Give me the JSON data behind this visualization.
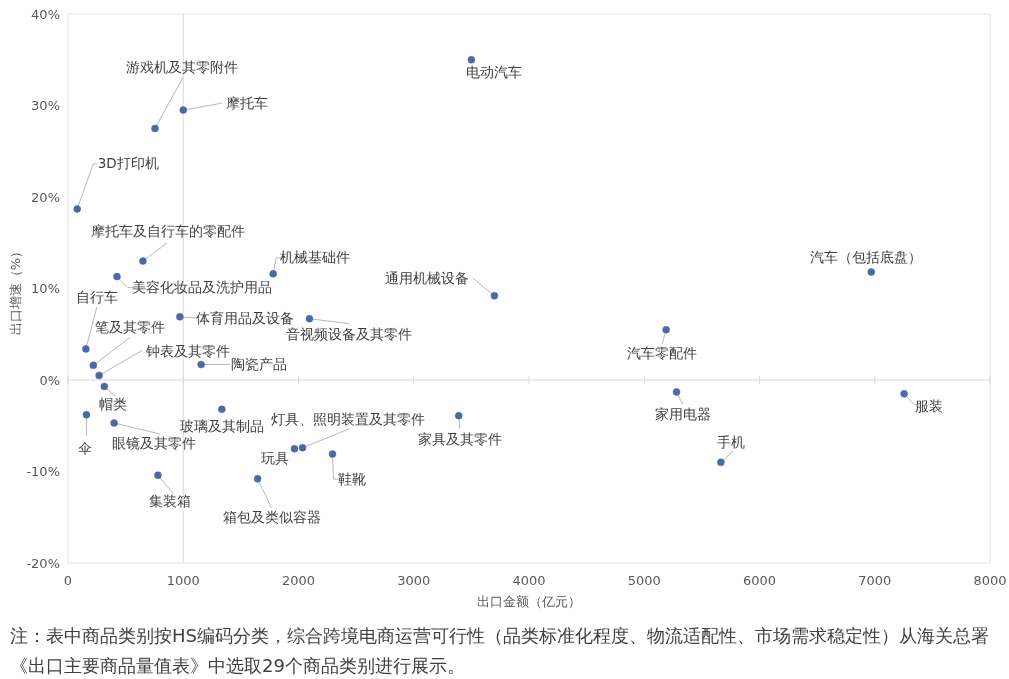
{
  "chart_data": {
    "type": "scatter",
    "xlabel": "出口金额（亿元）",
    "ylabel": "出口增速（%）",
    "x": [
      3500,
      755,
      1000,
      80,
      650,
      425,
      1780,
      3700,
      6970,
      155,
      220,
      270,
      315,
      160,
      400,
      780,
      970,
      1155,
      1335,
      2095,
      1965,
      2035,
      1645,
      2295,
      3390,
      5190,
      5280,
      5665,
      7255
    ],
    "values": [
      35.0,
      27.5,
      29.5,
      18.7,
      13.0,
      11.3,
      11.6,
      9.2,
      11.8,
      3.4,
      1.6,
      0.5,
      -0.7,
      -3.8,
      -4.7,
      -10.4,
      6.9,
      1.7,
      -3.2,
      6.7,
      -7.5,
      -7.4,
      -10.8,
      -8.1,
      -3.9,
      5.5,
      -1.3,
      -9.0,
      -1.5
    ],
    "color": "#4a6aa5",
    "marker": "circle",
    "xlim": [
      0,
      8000
    ],
    "ylim": [
      -20,
      40
    ],
    "xticks": [
      0,
      1000,
      2000,
      3000,
      4000,
      5000,
      6000,
      7000,
      8000
    ],
    "yticks": [
      {
        "value": -20,
        "label": "-20%"
      },
      {
        "value": -10,
        "label": "-10%"
      },
      {
        "value": 0,
        "label": "0%"
      },
      {
        "value": 10,
        "label": "10%"
      },
      {
        "value": 20,
        "label": "20%"
      },
      {
        "value": 30,
        "label": "30%"
      },
      {
        "value": 40,
        "label": "40%"
      }
    ],
    "ref_lines": [
      {
        "axis": "y",
        "value": 0,
        "color": "#d9d9d9"
      },
      {
        "axis": "x",
        "value": 1000,
        "color": "#d9d9d9"
      }
    ],
    "annotations": [
      {
        "text": "电动汽车",
        "x": 3500,
        "y": 35.0
      },
      {
        "text": "游戏机及其零附件",
        "x": 755,
        "y": 27.5
      },
      {
        "text": "摩托车",
        "x": 1000,
        "y": 29.5
      },
      {
        "text": "3D打印机",
        "x": 80,
        "y": 18.7
      },
      {
        "text": "摩托车及自行车的零配件",
        "x": 650,
        "y": 13.0
      },
      {
        "text": "美容化妆品及洗护用品",
        "x": 425,
        "y": 11.3
      },
      {
        "text": "机械基础件",
        "x": 1780,
        "y": 11.6
      },
      {
        "text": "通用机械设备",
        "x": 3700,
        "y": 9.2
      },
      {
        "text": "汽车（包括底盘）",
        "x": 6970,
        "y": 11.8
      },
      {
        "text": "自行车",
        "x": 155,
        "y": 3.4
      },
      {
        "text": "笔及其零件",
        "x": 220,
        "y": 1.6
      },
      {
        "text": "钟表及其零件",
        "x": 270,
        "y": 0.5
      },
      {
        "text": "帽类",
        "x": 315,
        "y": -0.7
      },
      {
        "text": "伞",
        "x": 160,
        "y": -3.8
      },
      {
        "text": "眼镜及其零件",
        "x": 400,
        "y": -4.7
      },
      {
        "text": "集装箱",
        "x": 780,
        "y": -10.4
      },
      {
        "text": "体育用品及设备",
        "x": 970,
        "y": 6.9
      },
      {
        "text": "陶瓷产品",
        "x": 1155,
        "y": 1.7
      },
      {
        "text": "玻璃及其制品",
        "x": 1335,
        "y": -3.2
      },
      {
        "text": "音视频设备及其零件",
        "x": 2095,
        "y": 6.7
      },
      {
        "text": "玩具",
        "x": 1965,
        "y": -7.5
      },
      {
        "text": "灯具、照明装置及其零件",
        "x": 2035,
        "y": -7.4
      },
      {
        "text": "箱包及类似容器",
        "x": 1645,
        "y": -10.8
      },
      {
        "text": "鞋靴",
        "x": 2295,
        "y": -8.1
      },
      {
        "text": "家具及其零件",
        "x": 3390,
        "y": -3.9
      },
      {
        "text": "汽车零配件",
        "x": 5190,
        "y": 5.5
      },
      {
        "text": "家用电器",
        "x": 5280,
        "y": -1.3
      },
      {
        "text": "手机",
        "x": 5665,
        "y": -9.0
      },
      {
        "text": "服装",
        "x": 7255,
        "y": -1.5
      },
      "注：表中商品类别按HS编码分类，综合跨境电商运营可行性（品类标准化程度、物流适配性、市场需求稳定性）从海关总署《出口主要商品量值表》中选取29个商品类别进行展示。"
    ]
  }
}
